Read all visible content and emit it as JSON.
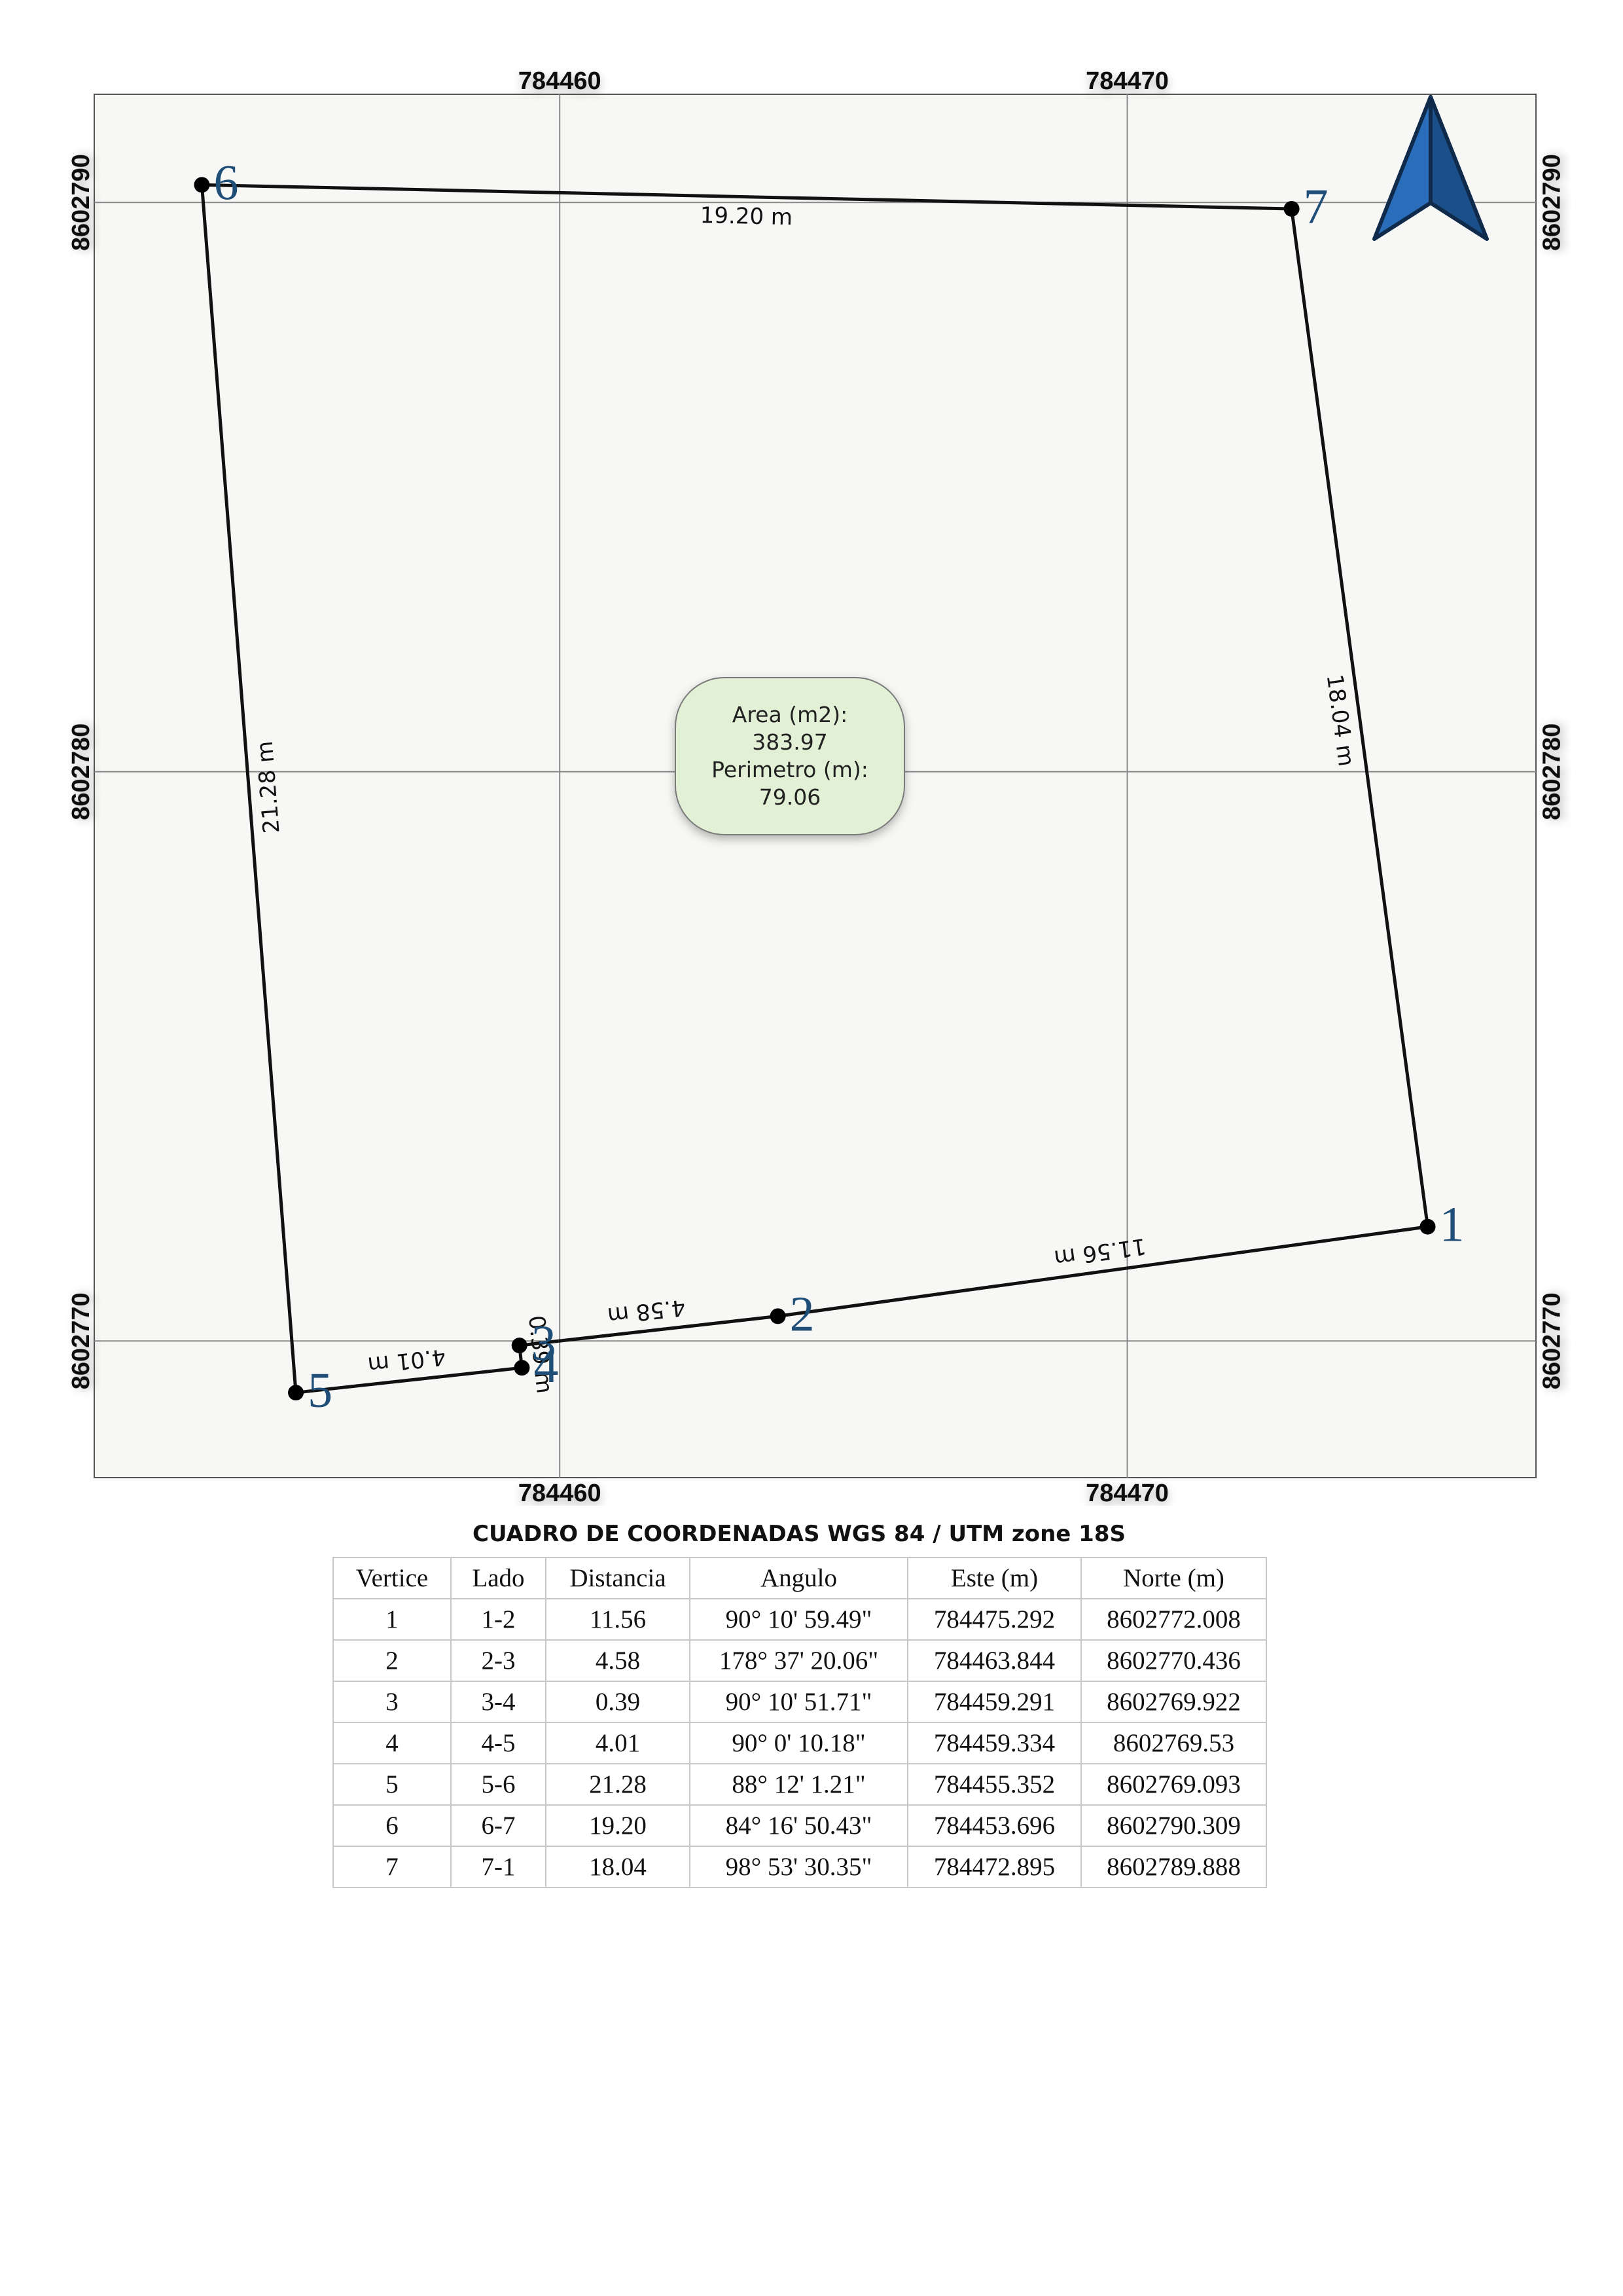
{
  "map": {
    "grid_x_labels": [
      "784460",
      "784470"
    ],
    "grid_y_labels": [
      "8602790",
      "8602780",
      "8602770"
    ],
    "grid_x_values": [
      784460,
      784470
    ],
    "grid_y_values": [
      8602790,
      8602780,
      8602770
    ],
    "extent": {
      "este_min": 784451.8,
      "este_max": 784477.2,
      "norte_min": 8602767.6,
      "norte_max": 8602791.9
    },
    "north_arrow": {
      "icon": "north-arrow-icon",
      "color": "#2a6ebb"
    },
    "line_color": "#111111",
    "frame_background": "#f7f7f5",
    "vertices": [
      {
        "label": "1",
        "este": 784475.292,
        "norte": 8602772.008
      },
      {
        "label": "2",
        "este": 784463.844,
        "norte": 8602770.436
      },
      {
        "label": "3",
        "este": 784459.291,
        "norte": 8602769.922
      },
      {
        "label": "4",
        "este": 784459.334,
        "norte": 8602769.53
      },
      {
        "label": "5",
        "este": 784455.352,
        "norte": 8602769.093
      },
      {
        "label": "6",
        "este": 784453.696,
        "norte": 8602790.309
      },
      {
        "label": "7",
        "este": 784472.895,
        "norte": 8602789.888
      }
    ],
    "sides": [
      {
        "from": 0,
        "to": 1,
        "label": "11.56 m"
      },
      {
        "from": 1,
        "to": 2,
        "label": "4.58 m"
      },
      {
        "from": 2,
        "to": 3,
        "label": "0.39 m"
      },
      {
        "from": 3,
        "to": 4,
        "label": "4.01 m"
      },
      {
        "from": 4,
        "to": 5,
        "label": "21.28 m"
      },
      {
        "from": 5,
        "to": 6,
        "label": "19.20 m"
      },
      {
        "from": 6,
        "to": 0,
        "label": "18.04 m"
      }
    ],
    "info_box": {
      "line1": "Area (m2):",
      "line2": "383.97",
      "line3": "Perimetro (m):",
      "line4": "79.06",
      "fill": "#e2f0d5"
    }
  },
  "table": {
    "title": "CUADRO DE COORDENADAS WGS 84 / UTM zone 18S",
    "headers": [
      "Vertice",
      "Lado",
      "Distancia",
      "Angulo",
      "Este (m)",
      "Norte (m)"
    ],
    "rows": [
      [
        "1",
        "1-2",
        "11.56",
        "90° 10' 59.49\"",
        "784475.292",
        "8602772.008"
      ],
      [
        "2",
        "2-3",
        "4.58",
        "178° 37' 20.06\"",
        "784463.844",
        "8602770.436"
      ],
      [
        "3",
        "3-4",
        "0.39",
        "90° 10' 51.71\"",
        "784459.291",
        "8602769.922"
      ],
      [
        "4",
        "4-5",
        "4.01",
        "90° 0' 10.18\"",
        "784459.334",
        "8602769.53"
      ],
      [
        "5",
        "5-6",
        "21.28",
        "88° 12' 1.21\"",
        "784455.352",
        "8602769.093"
      ],
      [
        "6",
        "6-7",
        "19.20",
        "84° 16' 50.43\"",
        "784453.696",
        "8602790.309"
      ],
      [
        "7",
        "7-1",
        "18.04",
        "98° 53' 30.35\"",
        "784472.895",
        "8602789.888"
      ]
    ]
  }
}
